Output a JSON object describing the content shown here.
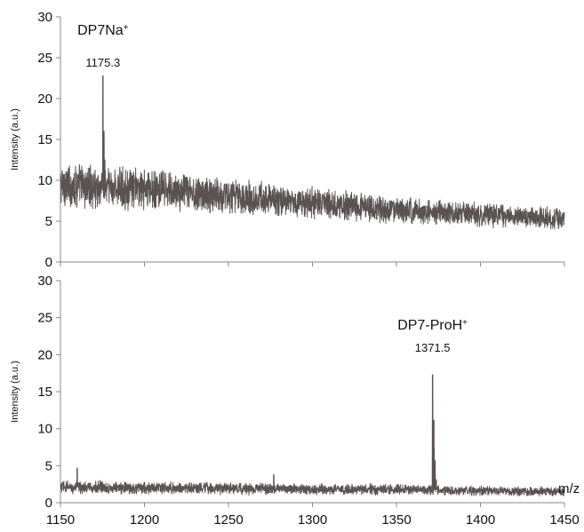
{
  "chart_data": [
    {
      "type": "line",
      "xlim": [
        1150,
        1450
      ],
      "ylim": [
        0,
        30
      ],
      "xticks": [
        1150,
        1200,
        1250,
        1300,
        1350,
        1400,
        1450
      ],
      "yticks": [
        0,
        5,
        10,
        15,
        20,
        25,
        30
      ],
      "ylabel": "Intensity (a.u.)",
      "xlabel": "",
      "grid": false,
      "annotations": [
        {
          "title": "DP7Na",
          "superscript": "+",
          "value_label": "1175.3",
          "x": 1175.3
        }
      ],
      "series": [
        {
          "color": "#5a5352",
          "baseline": [
            [
              1150,
              9.4
            ],
            [
              1200,
              8.9
            ],
            [
              1250,
              8.1
            ],
            [
              1300,
              7.2
            ],
            [
              1350,
              6.3
            ],
            [
              1400,
              5.8
            ],
            [
              1450,
              5.3
            ]
          ],
          "noise_amplitude": [
            [
              1150,
              3.1
            ],
            [
              1200,
              2.8
            ],
            [
              1250,
              2.4
            ],
            [
              1300,
              2.1
            ],
            [
              1350,
              1.8
            ],
            [
              1400,
              1.6
            ],
            [
              1450,
              1.4
            ]
          ],
          "peaks": [
            {
              "x": 1175.3,
              "y": 22.8
            },
            {
              "x": 1175.9,
              "y": 16.0
            },
            {
              "x": 1176.4,
              "y": 12.5
            }
          ]
        }
      ]
    },
    {
      "type": "line",
      "xlim": [
        1150,
        1450
      ],
      "ylim": [
        0,
        30
      ],
      "xticks": [
        1150,
        1200,
        1250,
        1300,
        1350,
        1400,
        1450
      ],
      "yticks": [
        0,
        5,
        10,
        15,
        20,
        25,
        30
      ],
      "ylabel": "Intensity (a.u.)",
      "xlabel": "m/z",
      "grid": false,
      "annotations": [
        {
          "title": "DP7-ProH",
          "superscript": "+",
          "value_label": "1371.5",
          "x": 1371.5
        }
      ],
      "series": [
        {
          "color": "#5a5352",
          "baseline": [
            [
              1150,
              2.1
            ],
            [
              1200,
              2.0
            ],
            [
              1250,
              1.9
            ],
            [
              1300,
              1.8
            ],
            [
              1350,
              1.8
            ],
            [
              1400,
              1.6
            ],
            [
              1450,
              1.5
            ]
          ],
          "noise_amplitude": [
            [
              1150,
              1.0
            ],
            [
              1200,
              0.9
            ],
            [
              1250,
              0.9
            ],
            [
              1300,
              0.8
            ],
            [
              1350,
              0.8
            ],
            [
              1400,
              0.7
            ],
            [
              1450,
              0.7
            ]
          ],
          "peaks": [
            {
              "x": 1160.0,
              "y": 4.7
            },
            {
              "x": 1277.0,
              "y": 3.8
            },
            {
              "x": 1371.5,
              "y": 17.3
            },
            {
              "x": 1372.3,
              "y": 11.2
            },
            {
              "x": 1373.0,
              "y": 5.7
            },
            {
              "x": 1373.7,
              "y": 3.1
            }
          ]
        }
      ]
    }
  ]
}
